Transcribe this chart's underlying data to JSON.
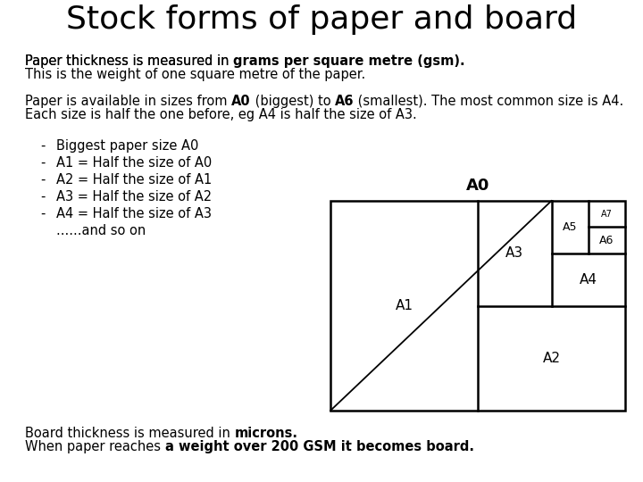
{
  "title": "Stock forms of paper and board",
  "bg_color": "#ffffff",
  "text_color": "#000000",
  "body_fontsize": 10.5,
  "title_fontsize": 26,
  "diagram_label_fontsize": 11,
  "diagram_label_a0_fontsize": 13,
  "diagram_label_small_fontsize": 9,
  "diagram_label_tiny_fontsize": 7,
  "bullets": [
    "Biggest paper size A0",
    "A1 = Half the size of A0",
    "A2 = Half the size of A1",
    "A3 = Half the size of A2",
    "A4 = Half the size of A3"
  ],
  "DL": 370,
  "DB": 80,
  "DW": 330,
  "DH": 235
}
